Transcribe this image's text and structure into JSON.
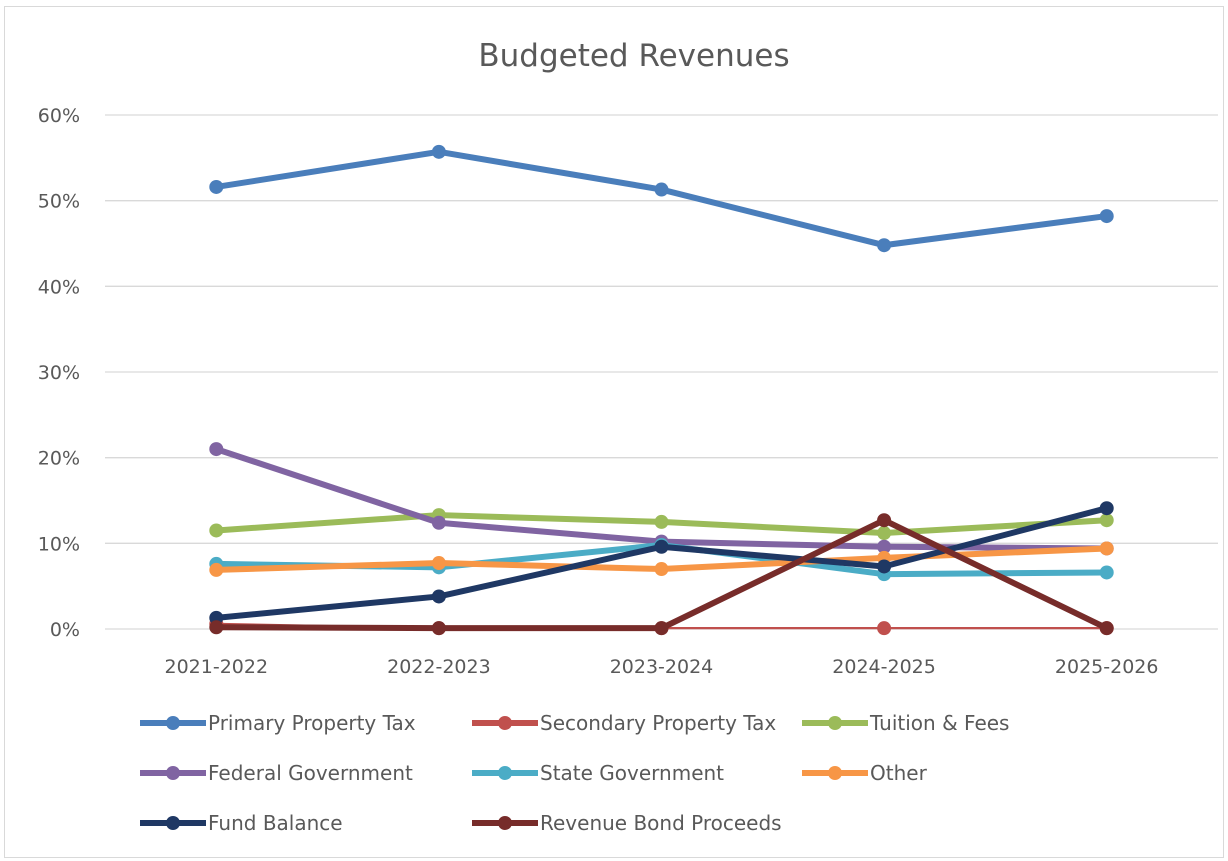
{
  "chart_data": {
    "type": "line",
    "title": "Budgeted Revenues",
    "xlabel": "",
    "ylabel": "",
    "categories": [
      "2021-2022",
      "2022-2023",
      "2023-2024",
      "2024-2025",
      "2025-2026"
    ],
    "ylim": [
      0,
      60
    ],
    "yticks": [
      0,
      10,
      20,
      30,
      40,
      50,
      60
    ],
    "ytick_labels": [
      "0%",
      "10%",
      "20%",
      "30%",
      "40%",
      "50%",
      "60%"
    ],
    "grid": true,
    "legend_position": "bottom",
    "series": [
      {
        "name": "Primary Property Tax",
        "color": "#4a7ebb",
        "values": [
          51.6,
          55.7,
          51.3,
          44.8,
          48.2
        ]
      },
      {
        "name": "Secondary Property Tax",
        "color": "#c0504d",
        "values": [
          0.6,
          0.1,
          0.1,
          0.1,
          0.1
        ]
      },
      {
        "name": "Tuition & Fees",
        "color": "#9bbb59",
        "values": [
          11.5,
          13.3,
          12.5,
          11.2,
          12.7
        ]
      },
      {
        "name": "Federal Government",
        "color": "#8064a2",
        "values": [
          21.0,
          12.4,
          10.2,
          9.6,
          9.4
        ]
      },
      {
        "name": "State Government",
        "color": "#4bacc6",
        "values": [
          7.6,
          7.2,
          9.8,
          6.4,
          6.6
        ]
      },
      {
        "name": "Other",
        "color": "#f79646",
        "values": [
          6.9,
          7.7,
          7.0,
          8.3,
          9.4
        ]
      },
      {
        "name": "Fund Balance",
        "color": "#1f3864",
        "values": [
          1.3,
          3.8,
          9.6,
          7.3,
          14.1
        ]
      },
      {
        "name": "Revenue Bond Proceeds",
        "color": "#772c2a",
        "values": [
          0.2,
          0.1,
          0.1,
          12.7,
          0.1
        ]
      }
    ]
  }
}
